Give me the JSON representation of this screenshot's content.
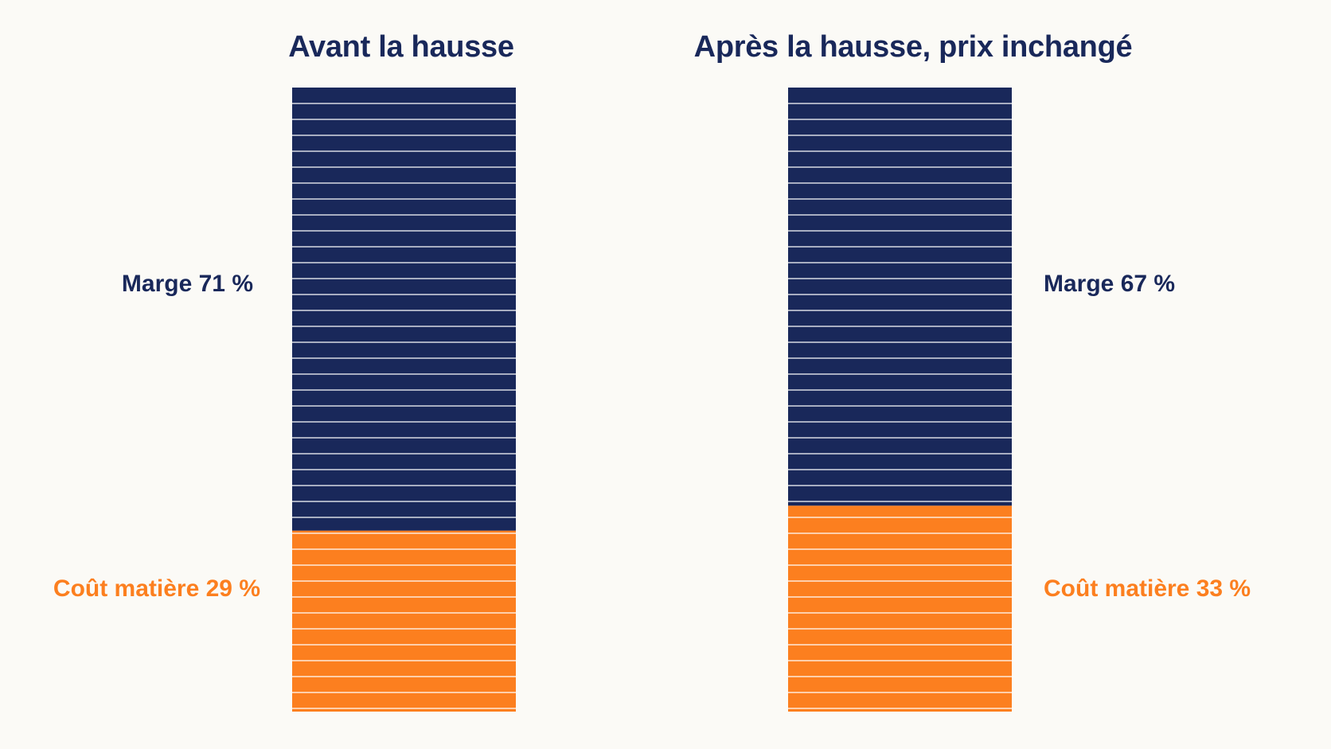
{
  "chart_data": [
    {
      "type": "bar",
      "stacked": true,
      "title": "Avant la hausse",
      "unit": "%",
      "ylim": [
        0,
        100
      ],
      "series": [
        {
          "name": "Coût matière",
          "value": 29,
          "label": "Coût matière 29 %",
          "color": "#fc7f1f"
        },
        {
          "name": "Marge",
          "value": 71,
          "label": "Marge 71 %",
          "color": "#19285a"
        }
      ]
    },
    {
      "type": "bar",
      "stacked": true,
      "title": "Après la hausse, prix inchangé",
      "unit": "%",
      "ylim": [
        0,
        100
      ],
      "series": [
        {
          "name": "Coût matière",
          "value": 33,
          "label": "Coût matière 33 %",
          "color": "#fc7f1f"
        },
        {
          "name": "Marge",
          "value": 67,
          "label": "Marge 67 %",
          "color": "#19285a"
        }
      ]
    }
  ],
  "colors": {
    "background": "#fbfaf6",
    "title": "#19285a",
    "margin": "#19285a",
    "cost": "#fc7f1f",
    "stripe": "#ffffff"
  }
}
